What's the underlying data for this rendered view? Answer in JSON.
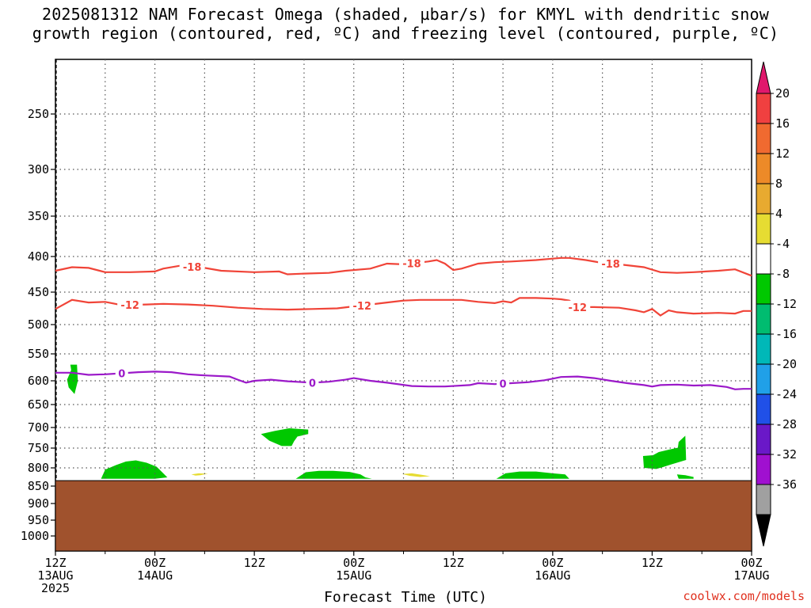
{
  "title_line1": "2025081312 NAM Forecast Omega (shaded, µbar/s) for KMYL with dendritic snow",
  "title_line2": "growth region (contoured, red, ºC) and freezing level (contoured, purple, ºC)",
  "xaxis_title": "Forecast Time (UTC)",
  "credit": "coolwx.com/models",
  "chart_data": {
    "type": "time-height cross section",
    "title": "2025081312 NAM Forecast Omega (shaded, µbar/s) for KMYL with dendritic snow growth region (contoured, red, ºC) and freezing level (contoured, purple, ºC)",
    "xlabel": "Forecast Time (UTC)",
    "ylabel": "",
    "x_ticks": [
      {
        "hour": 0,
        "label": "12Z",
        "sub": "13AUG",
        "sub2": "2025"
      },
      {
        "hour": 12,
        "label": "00Z",
        "sub": "14AUG",
        "sub2": ""
      },
      {
        "hour": 24,
        "label": "12Z",
        "sub": "",
        "sub2": ""
      },
      {
        "hour": 36,
        "label": "00Z",
        "sub": "15AUG",
        "sub2": ""
      },
      {
        "hour": 48,
        "label": "12Z",
        "sub": "",
        "sub2": ""
      },
      {
        "hour": 60,
        "label": "00Z",
        "sub": "16AUG",
        "sub2": ""
      },
      {
        "hour": 72,
        "label": "12Z",
        "sub": "",
        "sub2": ""
      },
      {
        "hour": 84,
        "label": "00Z",
        "sub": "17AUG",
        "sub2": ""
      }
    ],
    "x_minor_hours": [
      6,
      18,
      30,
      42,
      54,
      66,
      78
    ],
    "xlim_hours": [
      0,
      84
    ],
    "y_ticks": [
      250,
      300,
      350,
      400,
      450,
      500,
      550,
      600,
      650,
      700,
      750,
      800,
      850,
      900,
      950,
      1000
    ],
    "ylim_hPa": [
      200,
      1025
    ],
    "grid_levels": [
      250,
      300,
      350,
      400,
      450,
      500,
      550,
      600,
      650,
      700,
      750,
      800
    ],
    "terrain_top_hPa": 835,
    "terrain_color": "#a0522d",
    "contours": [
      {
        "name": "-18",
        "color": "#f04438",
        "labels_at_hours": [
          16.5,
          43,
          67
        ],
        "points": [
          [
            0,
            420
          ],
          [
            2,
            415
          ],
          [
            4,
            416
          ],
          [
            6,
            422
          ],
          [
            9,
            422
          ],
          [
            12,
            421
          ],
          [
            13,
            417
          ],
          [
            15,
            413
          ],
          [
            18,
            416
          ],
          [
            20,
            420
          ],
          [
            24,
            422
          ],
          [
            27,
            421
          ],
          [
            28,
            425
          ],
          [
            30,
            424
          ],
          [
            33,
            423
          ],
          [
            35,
            420
          ],
          [
            38,
            417
          ],
          [
            40,
            410
          ],
          [
            42,
            411
          ],
          [
            45,
            407
          ],
          [
            46,
            405
          ],
          [
            47,
            410
          ],
          [
            48,
            419
          ],
          [
            49,
            417
          ],
          [
            51,
            410
          ],
          [
            53,
            408
          ],
          [
            55,
            407
          ],
          [
            58,
            405
          ],
          [
            60,
            403
          ],
          [
            61,
            402
          ],
          [
            62,
            402
          ],
          [
            64,
            405
          ],
          [
            66,
            409
          ],
          [
            68,
            411
          ],
          [
            71,
            415
          ],
          [
            73,
            422
          ],
          [
            75,
            423
          ],
          [
            77,
            422
          ],
          [
            80,
            420
          ],
          [
            82,
            418
          ],
          [
            84,
            427
          ]
        ]
      },
      {
        "name": "-12",
        "color": "#f04438",
        "labels_at_hours": [
          9,
          37,
          63
        ],
        "points": [
          [
            0,
            476
          ],
          [
            2,
            462
          ],
          [
            4,
            466
          ],
          [
            6,
            465
          ],
          [
            8,
            470
          ],
          [
            11,
            469
          ],
          [
            13,
            468
          ],
          [
            16,
            469
          ],
          [
            19,
            471
          ],
          [
            22,
            474
          ],
          [
            25,
            476
          ],
          [
            28,
            477
          ],
          [
            31,
            476
          ],
          [
            34,
            475
          ],
          [
            36,
            472
          ],
          [
            38,
            469
          ],
          [
            40,
            466
          ],
          [
            42,
            463
          ],
          [
            44,
            462
          ],
          [
            46,
            462
          ],
          [
            49,
            462
          ],
          [
            51,
            465
          ],
          [
            53,
            467
          ],
          [
            54,
            464
          ],
          [
            55,
            466
          ],
          [
            56,
            459
          ],
          [
            58,
            459
          ],
          [
            60,
            460
          ],
          [
            61,
            461
          ],
          [
            62,
            463
          ],
          [
            63,
            473
          ],
          [
            65,
            473
          ],
          [
            68,
            474
          ],
          [
            70,
            478
          ],
          [
            71,
            481
          ],
          [
            72,
            476
          ],
          [
            73,
            486
          ],
          [
            74,
            478
          ],
          [
            75,
            481
          ],
          [
            77,
            483
          ],
          [
            80,
            482
          ],
          [
            82,
            483
          ],
          [
            83,
            479
          ],
          [
            84,
            479
          ]
        ]
      },
      {
        "name": "0",
        "color": "#9b19c9",
        "labels_at_hours": [
          8,
          31,
          54
        ],
        "points": [
          [
            0,
            585
          ],
          [
            2,
            585
          ],
          [
            4,
            589
          ],
          [
            6,
            588
          ],
          [
            8,
            586
          ],
          [
            10,
            584
          ],
          [
            12,
            583
          ],
          [
            14,
            584
          ],
          [
            16,
            588
          ],
          [
            18,
            590
          ],
          [
            21,
            592
          ],
          [
            22,
            598
          ],
          [
            23,
            604
          ],
          [
            24,
            600
          ],
          [
            26,
            598
          ],
          [
            28,
            601
          ],
          [
            31,
            604
          ],
          [
            33,
            602
          ],
          [
            35,
            598
          ],
          [
            36,
            595
          ],
          [
            38,
            600
          ],
          [
            40,
            604
          ],
          [
            43,
            611
          ],
          [
            45,
            612
          ],
          [
            47,
            612
          ],
          [
            50,
            609
          ],
          [
            51,
            605
          ],
          [
            53,
            607
          ],
          [
            55,
            605
          ],
          [
            57,
            603
          ],
          [
            59,
            599
          ],
          [
            60,
            596
          ],
          [
            61,
            593
          ],
          [
            63,
            592
          ],
          [
            65,
            595
          ],
          [
            67,
            600
          ],
          [
            69,
            605
          ],
          [
            71,
            609
          ],
          [
            72,
            612
          ],
          [
            73,
            609
          ],
          [
            75,
            608
          ],
          [
            77,
            610
          ],
          [
            79,
            609
          ],
          [
            81,
            613
          ],
          [
            82,
            618
          ],
          [
            83,
            617
          ],
          [
            84,
            617
          ]
        ]
      }
    ],
    "omega_patches": [
      {
        "color": "#00c800",
        "points": [
          [
            1.8,
            570
          ],
          [
            2.6,
            570
          ],
          [
            2.7,
            600
          ],
          [
            2.3,
            628
          ],
          [
            1.6,
            614
          ],
          [
            1.4,
            598
          ],
          [
            1.9,
            580
          ]
        ]
      },
      {
        "color": "#00c800",
        "points": [
          [
            5.5,
            830
          ],
          [
            6.0,
            805
          ],
          [
            7.3,
            793
          ],
          [
            8.5,
            784
          ],
          [
            9.7,
            781
          ],
          [
            11,
            787
          ],
          [
            12.2,
            797
          ],
          [
            12.8,
            810
          ],
          [
            13.5,
            826
          ],
          [
            12,
            830
          ],
          [
            9,
            830
          ]
        ]
      },
      {
        "color": "#00c800",
        "points": [
          [
            24.8,
            716
          ],
          [
            26.5,
            708
          ],
          [
            28.2,
            702
          ],
          [
            30.5,
            705
          ],
          [
            30.5,
            716
          ],
          [
            29.2,
            722
          ],
          [
            28.8,
            733
          ],
          [
            28.5,
            745
          ],
          [
            27.3,
            745
          ],
          [
            25.8,
            732
          ]
        ]
      },
      {
        "color": "#00c800",
        "points": [
          [
            29,
            830
          ],
          [
            30.2,
            812
          ],
          [
            31.8,
            808
          ],
          [
            33.5,
            808
          ],
          [
            35.5,
            811
          ],
          [
            36.8,
            818
          ],
          [
            37.4,
            826
          ],
          [
            38.2,
            830
          ],
          [
            32,
            830
          ]
        ]
      },
      {
        "color": "#00c800",
        "points": [
          [
            53.2,
            830
          ],
          [
            54.3,
            815
          ],
          [
            56.0,
            810
          ],
          [
            58.0,
            810
          ],
          [
            60.0,
            815
          ],
          [
            61.5,
            818
          ],
          [
            62.0,
            830
          ],
          [
            57,
            830
          ]
        ]
      },
      {
        "color": "#00c800",
        "points": [
          [
            70.9,
            770
          ],
          [
            72.1,
            768
          ],
          [
            72.8,
            760
          ],
          [
            74.0,
            754
          ],
          [
            75.1,
            749
          ],
          [
            75.2,
            735
          ],
          [
            76.0,
            720
          ],
          [
            76.1,
            780
          ],
          [
            74.2,
            792
          ],
          [
            73.3,
            798
          ],
          [
            72.5,
            803
          ],
          [
            71.0,
            800
          ]
        ]
      },
      {
        "color": "#00c800",
        "points": [
          [
            75.0,
            818
          ],
          [
            76.0,
            820
          ],
          [
            77.0,
            825
          ],
          [
            77.0,
            830
          ],
          [
            75.2,
            830
          ]
        ]
      },
      {
        "color": "#e6dc32",
        "points": [
          [
            16.4,
            818
          ],
          [
            17.3,
            815
          ],
          [
            18.4,
            816
          ],
          [
            17.5,
            820
          ],
          [
            16.9,
            821
          ]
        ]
      },
      {
        "color": "#e6dc32",
        "points": [
          [
            41.8,
            817
          ],
          [
            43.0,
            815
          ],
          [
            44.2,
            819
          ],
          [
            45.2,
            823
          ],
          [
            44,
            825
          ],
          [
            42.8,
            822
          ]
        ]
      }
    ],
    "colorbar": {
      "labels": [
        "20",
        "16",
        "12",
        "8",
        "4",
        "-4",
        "-8",
        "-12",
        "-16",
        "-20",
        "-24",
        "-28",
        "-32",
        "-36"
      ],
      "colors": [
        "#f04040",
        "#f06a30",
        "#ed8a28",
        "#e8aa30",
        "#e6dc32",
        "#ffffff",
        "#00c800",
        "#00bc70",
        "#00b8b8",
        "#20a0e8",
        "#2050e8",
        "#6a18c8",
        "#a010d0",
        "#a0a0a0"
      ],
      "top_arrow_color": "#e0186c",
      "bottom_arrow_color": "#000000"
    }
  }
}
